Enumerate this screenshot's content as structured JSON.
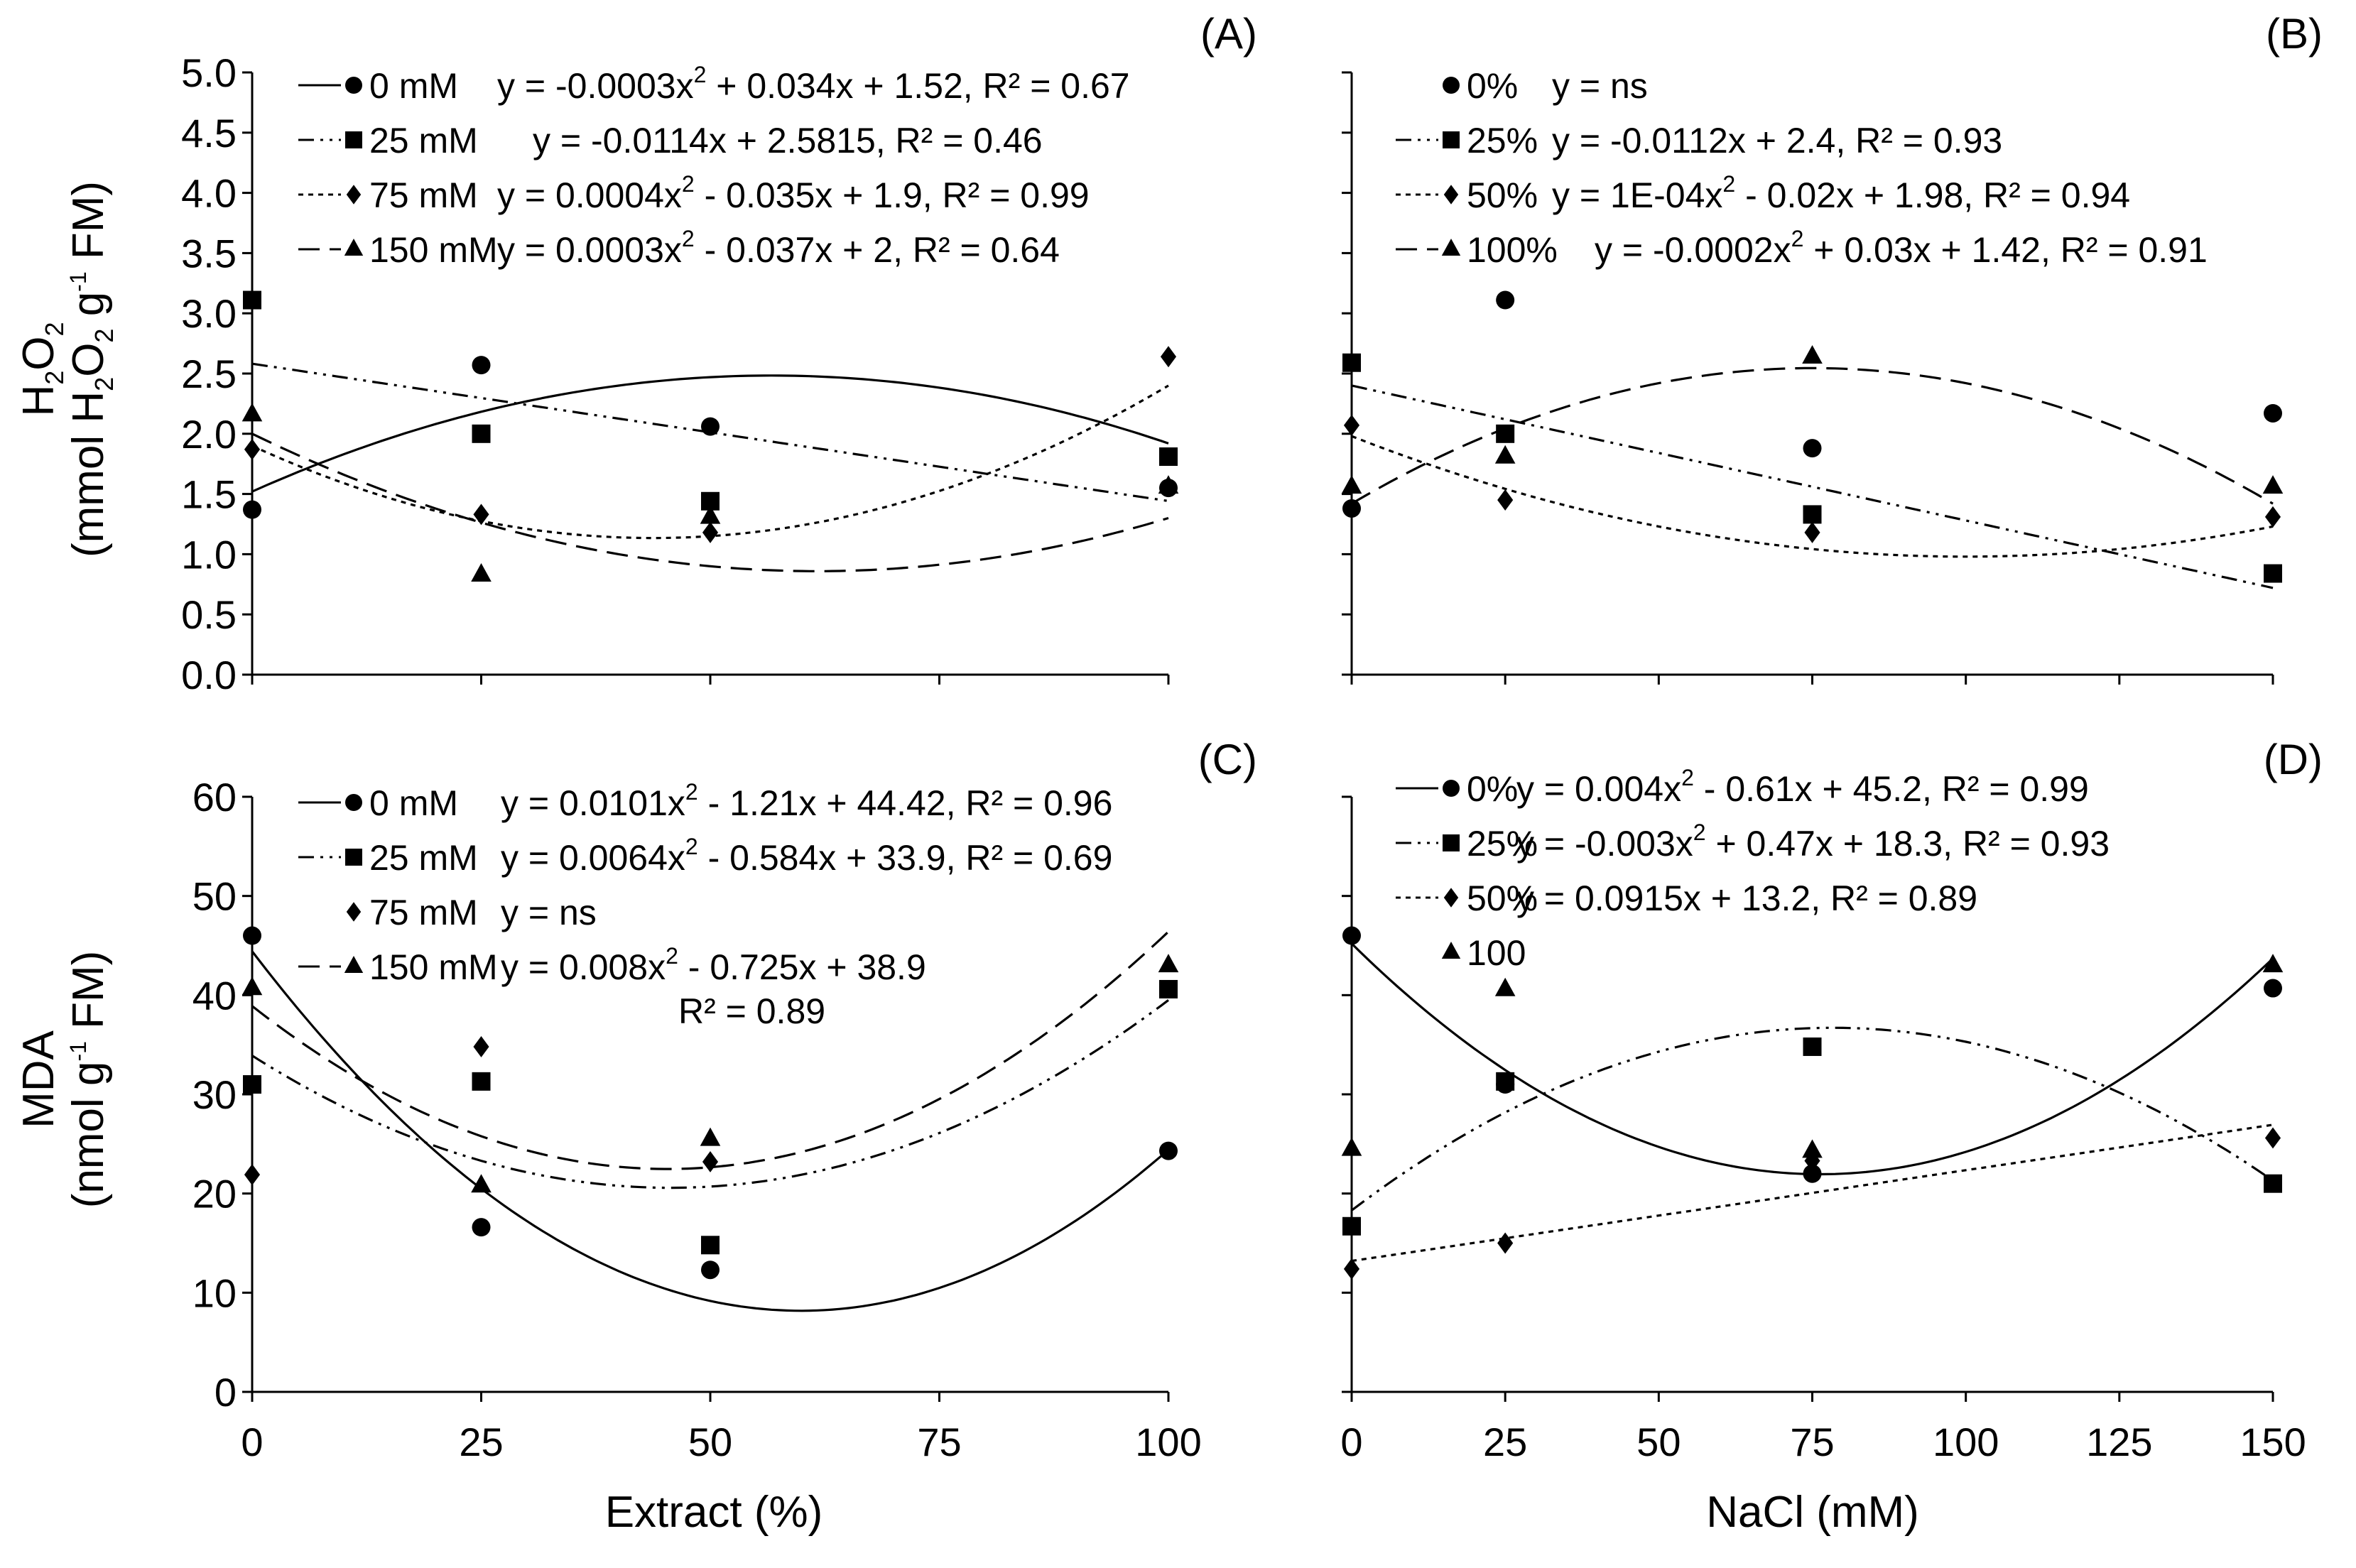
{
  "colors": {
    "ink": "#000000",
    "background": "#ffffff"
  },
  "chart_data": [
    {
      "id": "A",
      "label": "(A)",
      "type": "scatter",
      "fit": "trendline",
      "xlabel": "",
      "xlim": [
        0,
        100
      ],
      "xticks": [
        "0",
        "25",
        "50",
        "75",
        "100"
      ],
      "xtick_labels_shown": false,
      "ylabel": "H2O2 (mmol H2O2 g-1 FM)",
      "ylim": [
        0,
        5
      ],
      "yticks": [
        "0.0",
        "0.5",
        "1.0",
        "1.5",
        "2.0",
        "2.5",
        "3.0",
        "3.5",
        "4.0",
        "4.5",
        "5.0"
      ],
      "x": [
        0,
        25,
        50,
        100
      ],
      "series": [
        {
          "name": "0 mM",
          "marker": "circle",
          "dash": "solid",
          "values": [
            1.37,
            2.57,
            2.06,
            1.55
          ],
          "coef": [
            -0.0003,
            0.034,
            1.52
          ],
          "eq": "y = -0.0003x",
          "eq_sup": "2",
          "eq_rest": " + 0.034x + 1.52, R² = 0.67",
          "eq2": ""
        },
        {
          "name": "25 mM",
          "marker": "square",
          "dash": "dashdotdot",
          "values": [
            3.11,
            2.0,
            1.44,
            1.81
          ],
          "coef": [
            0,
            -0.0114,
            2.5815
          ],
          "eq": "y = -0.0114x + 2.5815, R² = 0.46",
          "eq_sup": "",
          "eq_rest": "",
          "eq2": ""
        },
        {
          "name": "75 mM",
          "marker": "diamond",
          "dash": "dotted",
          "values": [
            1.87,
            1.33,
            1.18,
            2.64
          ],
          "coef": [
            0.0004,
            -0.035,
            1.9
          ],
          "eq": "y = 0.0004x",
          "eq_sup": "2",
          "eq_rest": " - 0.035x + 1.9, R² = 0.99",
          "eq2": ""
        },
        {
          "name": "150 mM",
          "marker": "triangle",
          "dash": "dashed",
          "values": [
            2.16,
            0.83,
            1.31,
            1.56
          ],
          "coef": [
            0.0003,
            -0.037,
            2
          ],
          "eq": "y = 0.0003x",
          "eq_sup": "2",
          "eq_rest": " - 0.037x + 2, R² = 0.64",
          "eq2": ""
        }
      ]
    },
    {
      "id": "B",
      "label": "(B)",
      "type": "scatter",
      "fit": "trendline",
      "xlabel": "",
      "xlim": [
        0,
        150
      ],
      "xticks": [
        "0",
        "25",
        "50",
        "75",
        "100",
        "125",
        "150"
      ],
      "xtick_labels_shown": false,
      "ylabel": "",
      "ylim": [
        0,
        5
      ],
      "yticks": [],
      "x": [
        0,
        25,
        75,
        150
      ],
      "series": [
        {
          "name": "0%",
          "marker": "circle",
          "dash": "none",
          "values": [
            1.38,
            3.11,
            1.88,
            2.17
          ],
          "coef": null,
          "eq": "y = ns",
          "eq_sup": "",
          "eq_rest": "",
          "eq2": ""
        },
        {
          "name": "25%",
          "marker": "square",
          "dash": "dashdotdot",
          "values": [
            2.59,
            2.0,
            1.33,
            0.84
          ],
          "coef": [
            0,
            -0.0112,
            2.4
          ],
          "eq": "y = -0.0112x + 2.4, R² = 0.93",
          "eq_sup": "",
          "eq_rest": "",
          "eq2": ""
        },
        {
          "name": "50%",
          "marker": "diamond",
          "dash": "dotted",
          "values": [
            2.07,
            1.45,
            1.18,
            1.31
          ],
          "coef": [
            0.0001,
            -0.02,
            1.98
          ],
          "eq": "y = 1E-04x",
          "eq_sup": "2",
          "eq_rest": " - 0.02x + 1.98, R² = 0.94",
          "eq2": ""
        },
        {
          "name": "100%",
          "marker": "triangle",
          "dash": "dashed",
          "values": [
            1.56,
            1.81,
            2.64,
            1.56
          ],
          "coef": [
            -0.0002,
            0.03,
            1.42
          ],
          "eq": "y = -0.0002x",
          "eq_sup": "2",
          "eq_rest": " + 0.03x + 1.42, R² = 0.91",
          "eq2": ""
        }
      ]
    },
    {
      "id": "C",
      "label": "(C)",
      "type": "scatter",
      "fit": "trendline",
      "xlabel": "Extract (%)",
      "xlim": [
        0,
        100
      ],
      "xticks": [
        "0",
        "25",
        "50",
        "75",
        "100"
      ],
      "xtick_labels_shown": true,
      "ylabel": "MDA (nmol g-1 FM)",
      "ylim": [
        0,
        60
      ],
      "yticks": [
        "0",
        "10",
        "20",
        "30",
        "40",
        "50",
        "60"
      ],
      "x": [
        0,
        25,
        50,
        100
      ],
      "series": [
        {
          "name": "0 mM",
          "marker": "circle",
          "dash": "solid",
          "values": [
            46,
            16.6,
            12.3,
            24.3
          ],
          "coef": [
            0.0101,
            -1.21,
            44.42
          ],
          "eq": "y = 0.0101x",
          "eq_sup": "2",
          "eq_rest": " - 1.21x + 44.42, R² = 0.96",
          "eq2": ""
        },
        {
          "name": "25 mM",
          "marker": "square",
          "dash": "dashdotdot",
          "values": [
            31,
            31.3,
            14.8,
            40.6
          ],
          "coef": [
            0.0064,
            -0.584,
            33.9
          ],
          "eq": "y = 0.0064x",
          "eq_sup": "2",
          "eq_rest": " - 0.584x + 33.9, R² = 0.69",
          "eq2": ""
        },
        {
          "name": "75 mM",
          "marker": "diamond",
          "dash": "none",
          "values": [
            21.9,
            34.8,
            23.2,
            null
          ],
          "coef": null,
          "eq": "y = ns",
          "eq_sup": "",
          "eq_rest": "",
          "eq2": ""
        },
        {
          "name": "150 mM",
          "marker": "triangle",
          "dash": "dashed",
          "values": [
            40.7,
            20.8,
            25.5,
            43
          ],
          "coef": [
            0.008,
            -0.725,
            38.9
          ],
          "eq": "y = 0.008x",
          "eq_sup": "2",
          "eq_rest": " - 0.725x + 38.9",
          "eq2": "R² = 0.89"
        }
      ]
    },
    {
      "id": "D",
      "label": "(D)",
      "type": "scatter",
      "fit": "trendline",
      "xlabel": "NaCl (mM)",
      "xlim": [
        0,
        150
      ],
      "xticks": [
        "0",
        "25",
        "50",
        "75",
        "100",
        "125",
        "150"
      ],
      "xtick_labels_shown": true,
      "ylabel": "",
      "ylim": [
        0,
        60
      ],
      "yticks": [],
      "x": [
        0,
        25,
        75,
        150
      ],
      "series": [
        {
          "name": "0%",
          "marker": "circle",
          "dash": "solid",
          "values": [
            46,
            31,
            22,
            40.7
          ],
          "coef": [
            0.004,
            -0.61,
            45.2
          ],
          "eq": "y = 0.004x",
          "eq_sup": "2",
          "eq_rest": " - 0.61x + 45.2, R² = 0.99",
          "eq2": ""
        },
        {
          "name": "25%",
          "marker": "square",
          "dash": "dashdotdot",
          "values": [
            16.7,
            31.3,
            34.8,
            21
          ],
          "coef": [
            -0.003,
            0.47,
            18.3
          ],
          "eq": "y = -0.003x",
          "eq_sup": "2",
          "eq_rest": " + 0.47x + 18.3, R² = 0.93",
          "eq2": ""
        },
        {
          "name": "50%",
          "marker": "diamond",
          "dash": "dotted",
          "values": [
            12.4,
            15,
            23.3,
            25.6
          ],
          "coef": [
            0,
            0.0915,
            13.2
          ],
          "eq": "y = 0.0915x + 13.2, R² = 0.89",
          "eq_sup": "",
          "eq_rest": "",
          "eq2": ""
        },
        {
          "name": "100",
          "marker": "triangle",
          "dash": "none",
          "values": [
            24.5,
            40.6,
            24.3,
            43
          ],
          "coef": null,
          "eq": "",
          "eq_sup": "",
          "eq_rest": "",
          "eq2": ""
        }
      ]
    }
  ]
}
